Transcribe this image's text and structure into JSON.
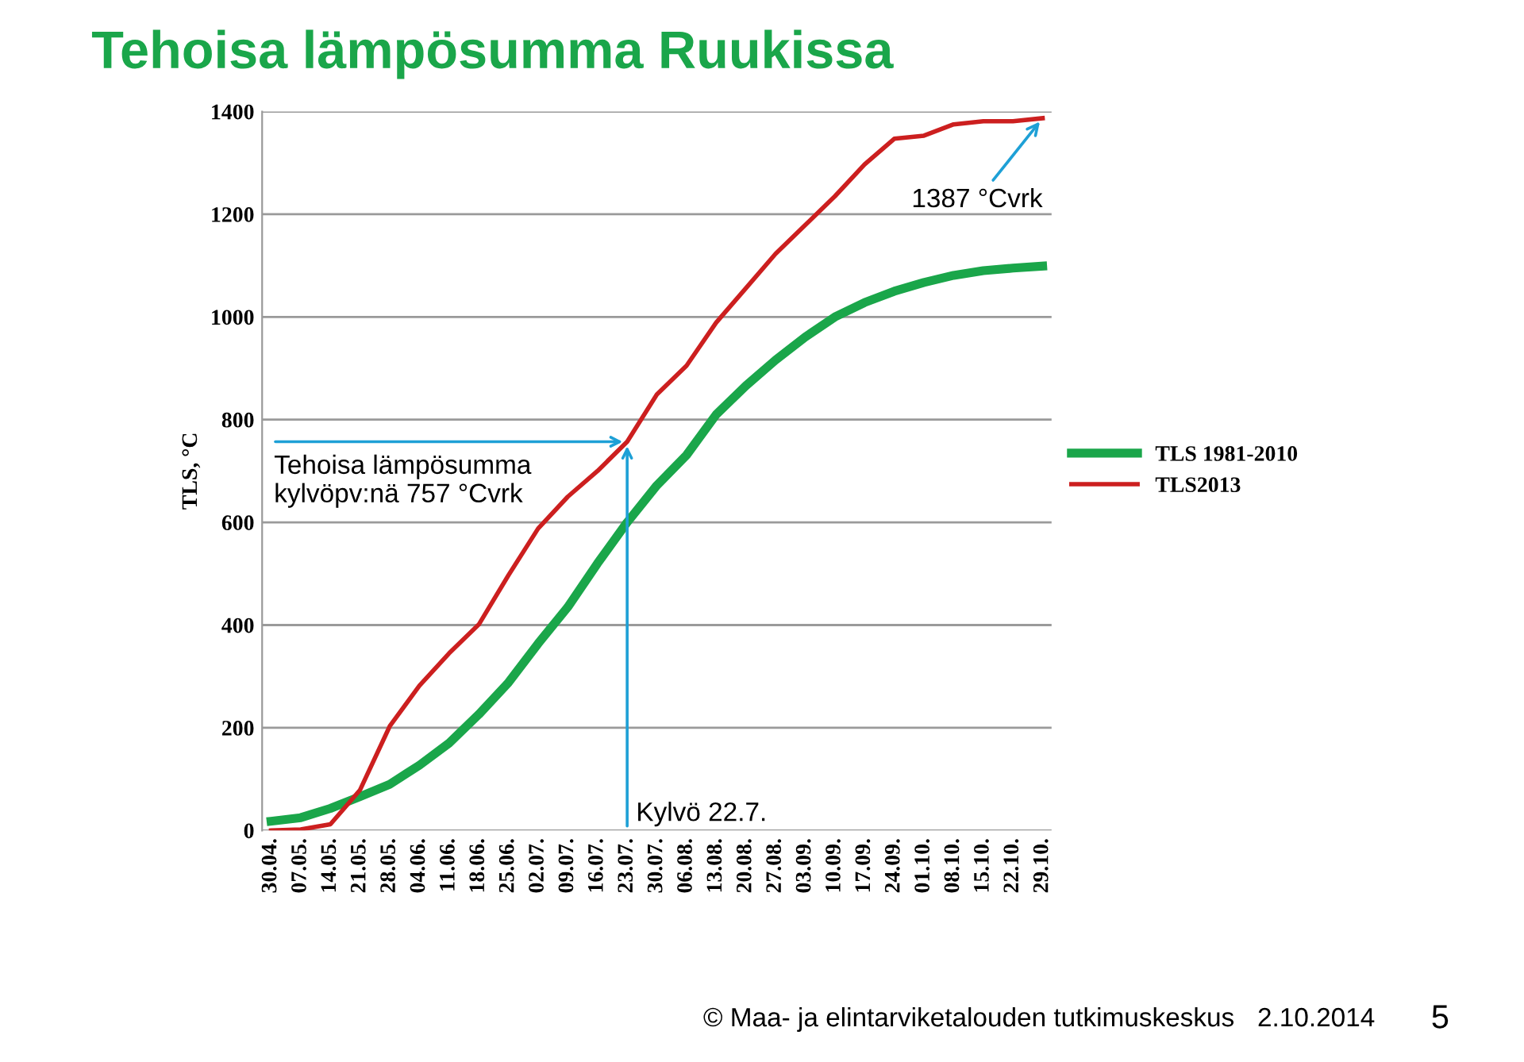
{
  "chart_data": {
    "type": "line",
    "title": "Tehoisa lämpösumma Ruukissa",
    "ylabel": "TLS, °C",
    "categories": [
      "30.04.",
      "07.05.",
      "14.05.",
      "21.05.",
      "28.05.",
      "04.06.",
      "11.06.",
      "18.06.",
      "25.06.",
      "02.07.",
      "09.07.",
      "16.07.",
      "23.07.",
      "30.07.",
      "06.08.",
      "13.08.",
      "20.08.",
      "27.08.",
      "03.09.",
      "10.09.",
      "17.09.",
      "24.09.",
      "01.10.",
      "08.10.",
      "15.10.",
      "22.10.",
      "29.10."
    ],
    "series": [
      {
        "name": "TLS 1981-2010",
        "color": "#1aa64a",
        "values": [
          18,
          25,
          43,
          66,
          90,
          127,
          170,
          226,
          288,
          364,
          435,
          520,
          600,
          672,
          731,
          810,
          866,
          916,
          961,
          1000,
          1028,
          1050,
          1067,
          1081,
          1090,
          1095,
          1099
        ]
      },
      {
        "name": "TLS2013",
        "color": "#cc1f1f",
        "values": [
          0,
          2,
          12,
          79,
          203,
          282,
          345,
          401,
          497,
          588,
          650,
          700,
          757,
          849,
          905,
          989,
          1056,
          1123,
          1179,
          1235,
          1297,
          1347,
          1353,
          1375,
          1381,
          1381,
          1387
        ]
      }
    ],
    "ylim": [
      0,
      1400
    ],
    "yticks": [
      0,
      200,
      400,
      600,
      800,
      1000,
      1200,
      1400
    ],
    "grid": "y",
    "legend": "right",
    "marker": "none",
    "annotations": [
      {
        "text": "Tehoisa lämpösumma\nkylvöpv:nä 757 °Cvrk",
        "x": "23.07.",
        "y": 757
      },
      {
        "text": "Kylvö 22.7.",
        "x": "23.07.",
        "y": 757
      },
      {
        "text": "1387 °Cvrk",
        "x": "29.10.",
        "y": 1387
      },
      "© Maa- ja elintarviketalouden tutkimuskeskus",
      "2.10.2014",
      "5"
    ]
  }
}
